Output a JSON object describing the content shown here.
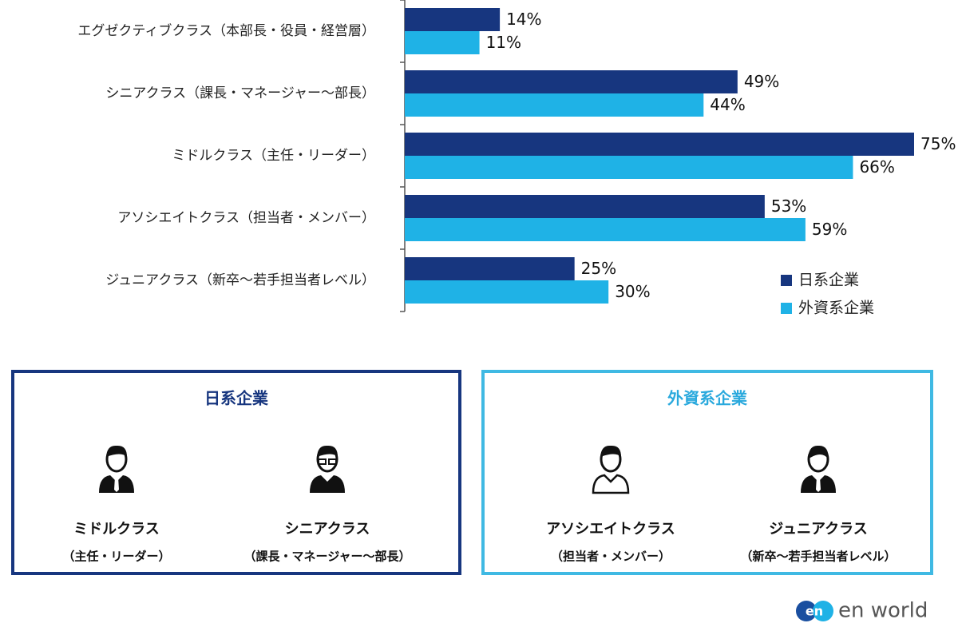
{
  "chart_data": {
    "type": "bar",
    "orientation": "horizontal",
    "categories": [
      "エグゼクティブクラス（本部長・役員・経営層）",
      "シニアクラス（課長・マネージャー～部長）",
      "ミドルクラス（主任・リーダー）",
      "アソシエイトクラス（担当者・メンバー）",
      "ジュニアクラス（新卒～若手担当者レベル）"
    ],
    "series": [
      {
        "name": "日系企業",
        "color": "#17367f",
        "values": [
          14,
          49,
          75,
          53,
          25
        ],
        "value_labels": [
          "14%",
          "49%",
          "75%",
          "53%",
          "25%"
        ]
      },
      {
        "name": "外資系企業",
        "color": "#1fb2e6",
        "values": [
          11,
          44,
          66,
          59,
          30
        ],
        "value_labels": [
          "11%",
          "44%",
          "66%",
          "59%",
          "30%"
        ]
      }
    ],
    "legend": "lower-right"
  },
  "panels": [
    {
      "title": "日系企業",
      "items": [
        {
          "name": "ミドルクラス",
          "sub": "（主任・リーダー）"
        },
        {
          "name": "シニアクラス",
          "sub": "（課長・マネージャー～部長）"
        }
      ]
    },
    {
      "title": "外資系企業",
      "items": [
        {
          "name": "アソシエイトクラス",
          "sub": "（担当者・メンバー）"
        },
        {
          "name": "ジュニアクラス",
          "sub": "（新卒～若手担当者レベル）"
        }
      ]
    }
  ],
  "logo": {
    "mark": "en",
    "text": "en world"
  }
}
